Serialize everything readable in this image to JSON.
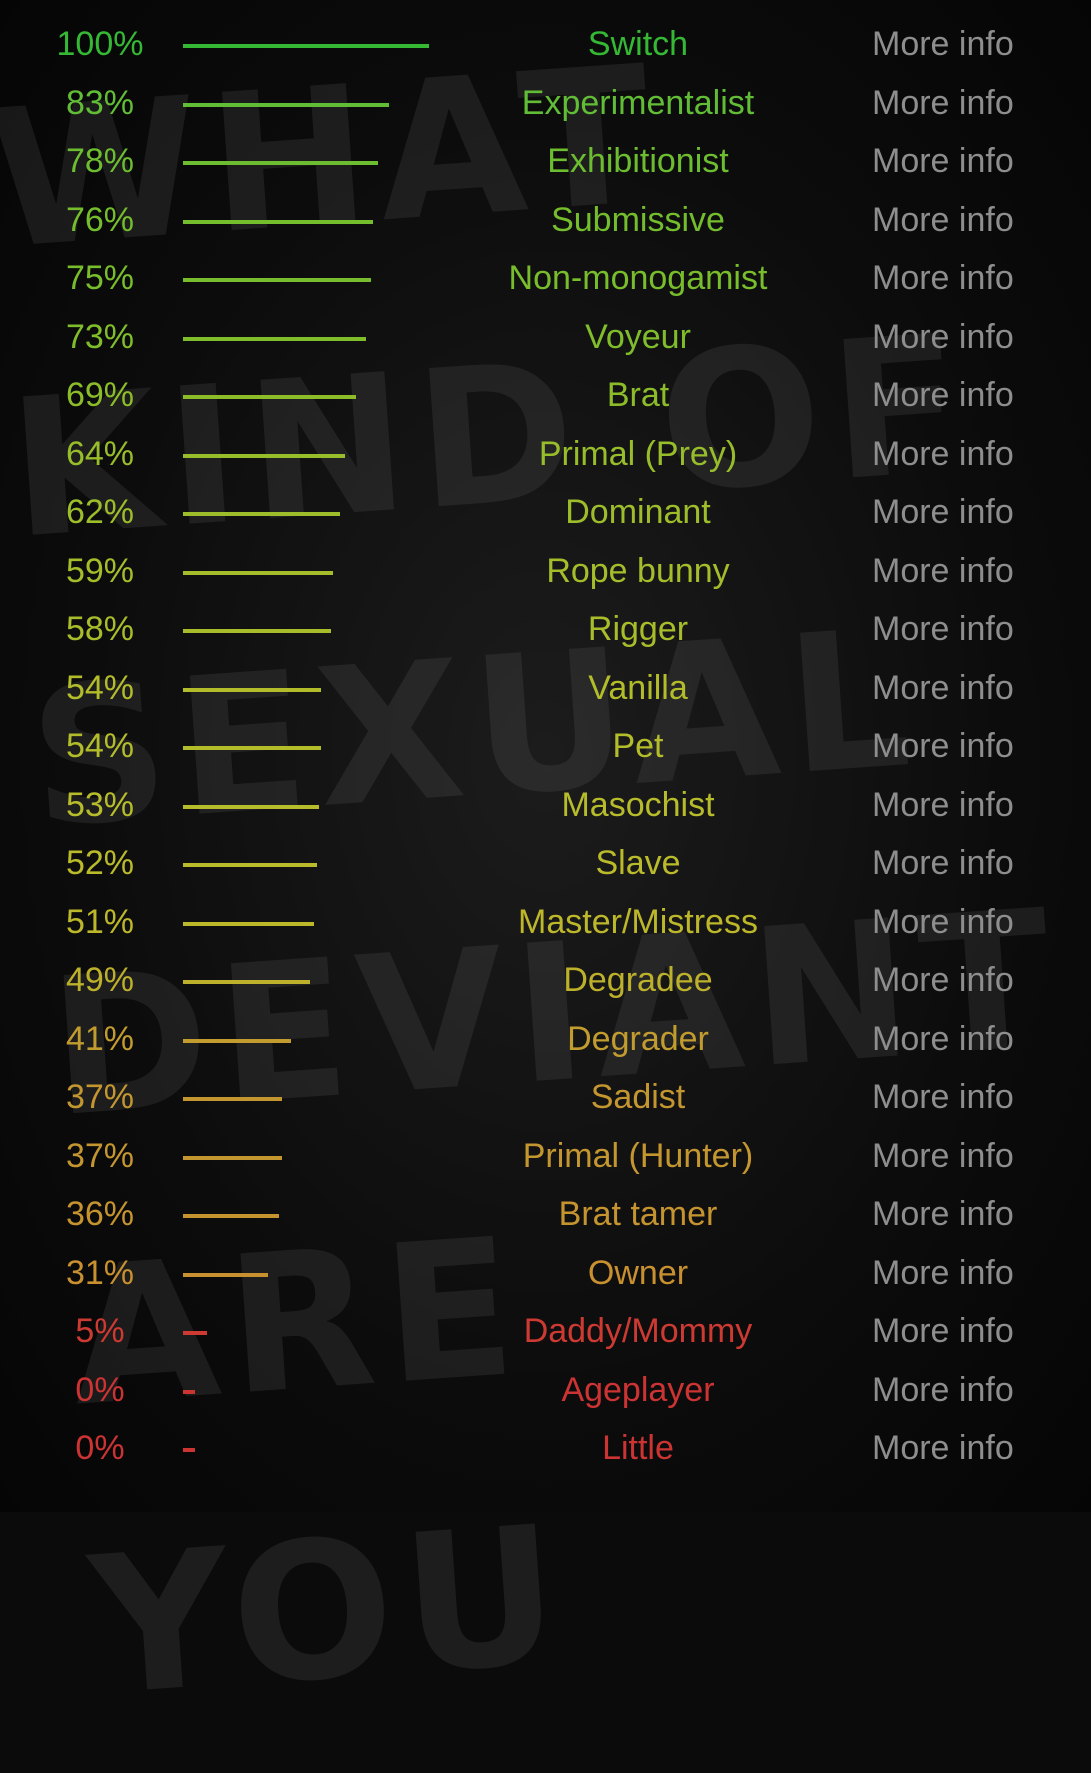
{
  "background_text": "WHAT KIND OF SEXUAL DEVIANT ARE YOU",
  "more_info_label": "More info",
  "results": [
    {
      "percent": 100,
      "label": "Switch",
      "color": "#35b935"
    },
    {
      "percent": 83,
      "label": "Experimentalist",
      "color": "#62bd36"
    },
    {
      "percent": 78,
      "label": "Exhibitionist",
      "color": "#6dbd30"
    },
    {
      "percent": 76,
      "label": "Submissive",
      "color": "#74bd2c"
    },
    {
      "percent": 75,
      "label": "Non-monogamist",
      "color": "#78bd2b"
    },
    {
      "percent": 73,
      "label": "Voyeur",
      "color": "#80bd2a"
    },
    {
      "percent": 69,
      "label": "Brat",
      "color": "#8cbd29"
    },
    {
      "percent": 64,
      "label": "Primal (Prey)",
      "color": "#98bd2a"
    },
    {
      "percent": 62,
      "label": "Dominant",
      "color": "#9dbd2a"
    },
    {
      "percent": 59,
      "label": "Rope bunny",
      "color": "#a5bd2a"
    },
    {
      "percent": 58,
      "label": "Rigger",
      "color": "#a9bd2a"
    },
    {
      "percent": 54,
      "label": "Vanilla",
      "color": "#b3bd2a"
    },
    {
      "percent": 54,
      "label": "Pet",
      "color": "#b3bd2a"
    },
    {
      "percent": 53,
      "label": "Masochist",
      "color": "#b7bd2a"
    },
    {
      "percent": 52,
      "label": "Slave",
      "color": "#babb2a"
    },
    {
      "percent": 51,
      "label": "Master/Mistress",
      "color": "#bdb72a"
    },
    {
      "percent": 49,
      "label": "Degradee",
      "color": "#bdb02a"
    },
    {
      "percent": 41,
      "label": "Degrader",
      "color": "#c29c2e"
    },
    {
      "percent": 37,
      "label": "Sadist",
      "color": "#c4962f"
    },
    {
      "percent": 37,
      "label": "Primal (Hunter)",
      "color": "#c4962f"
    },
    {
      "percent": 36,
      "label": "Brat tamer",
      "color": "#c5942f"
    },
    {
      "percent": 31,
      "label": "Owner",
      "color": "#c8902f"
    },
    {
      "percent": 5,
      "label": "Daddy/Mommy",
      "color": "#cc3a32"
    },
    {
      "percent": 0,
      "label": "Ageplayer",
      "color": "#cc3333"
    },
    {
      "percent": 0,
      "label": "Little",
      "color": "#cc3333"
    }
  ]
}
